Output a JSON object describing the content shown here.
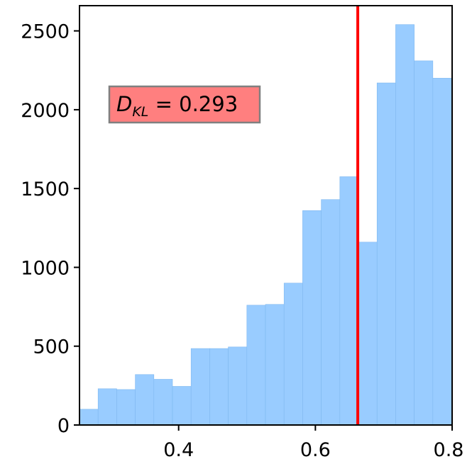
{
  "chart_data": {
    "type": "bar",
    "title": "",
    "xlabel": "",
    "ylabel": "",
    "xlim": [
      0.255,
      0.8
    ],
    "ylim": [
      0,
      2660
    ],
    "bin_edges": [
      0.255,
      0.2822,
      0.3094,
      0.3366,
      0.3638,
      0.391,
      0.4182,
      0.4454,
      0.4726,
      0.4998,
      0.527,
      0.5542,
      0.5814,
      0.6086,
      0.6358,
      0.663,
      0.6902,
      0.7174,
      0.7446,
      0.7718,
      0.8
    ],
    "values": [
      100,
      230,
      225,
      320,
      290,
      245,
      485,
      485,
      495,
      760,
      765,
      900,
      1360,
      1430,
      1575,
      1160,
      2170,
      2540,
      2310,
      2200
    ],
    "x_ticks": [
      0.4,
      0.6,
      0.8
    ],
    "x_tick_labels": [
      "0.4",
      "0.6",
      "0.8"
    ],
    "y_ticks": [
      0,
      500,
      1000,
      1500,
      2000,
      2500
    ],
    "y_tick_labels": [
      "0",
      "500",
      "1000",
      "1500",
      "2000",
      "2500"
    ],
    "vertical_line": {
      "x": 0.662,
      "color": "#ff0000"
    },
    "annotation": {
      "symbol": "D",
      "subscript": "KL",
      "text": " = 0.293",
      "box_color": "#ff7f7f",
      "border_color": "#808080"
    },
    "bar_color": "#99ccff",
    "bar_edge_color": "#7fb8ef",
    "grid": false
  }
}
